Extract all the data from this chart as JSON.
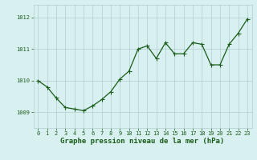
{
  "x": [
    0,
    1,
    2,
    3,
    4,
    5,
    6,
    7,
    8,
    9,
    10,
    11,
    12,
    13,
    14,
    15,
    16,
    17,
    18,
    19,
    20,
    21,
    22,
    23
  ],
  "y": [
    1010.0,
    1009.8,
    1009.45,
    1009.15,
    1009.1,
    1009.05,
    1009.2,
    1009.4,
    1009.65,
    1010.05,
    1010.3,
    1011.0,
    1011.1,
    1010.7,
    1011.2,
    1010.85,
    1010.85,
    1011.2,
    1011.15,
    1010.5,
    1010.5,
    1011.15,
    1011.5,
    1011.95
  ],
  "line_color": "#1a5c1a",
  "marker_color": "#1a5c1a",
  "bg_color": "#d8f0f0",
  "grid_color": "#b0cece",
  "xlabel": "Graphe pression niveau de la mer (hPa)",
  "xlabel_color": "#1a5c1a",
  "ytick_labels": [
    "1009",
    "1010",
    "1011",
    "1012"
  ],
  "ytick_vals": [
    1009,
    1010,
    1011,
    1012
  ],
  "xtick_vals": [
    0,
    1,
    2,
    3,
    4,
    5,
    6,
    7,
    8,
    9,
    10,
    11,
    12,
    13,
    14,
    15,
    16,
    17,
    18,
    19,
    20,
    21,
    22,
    23
  ],
  "ylim": [
    1008.5,
    1012.4
  ],
  "xlim": [
    -0.5,
    23.5
  ],
  "tick_color": "#1a5c1a",
  "tick_fontsize": 5.0,
  "xlabel_fontsize": 6.5,
  "linewidth": 0.9,
  "markersize": 2.0
}
